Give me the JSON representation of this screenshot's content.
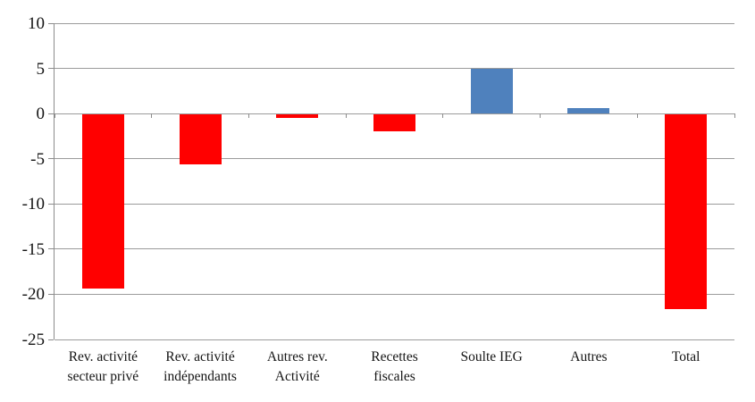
{
  "chart_data": {
    "type": "bar",
    "categories": [
      "Rev. activité\nsecteur privé",
      "Rev. activité\nindépendants",
      "Autres rev.\nActivité",
      "Recettes\nfiscales",
      "Soulte IEG",
      "Autres",
      "Total"
    ],
    "values": [
      -19.3,
      -5.6,
      -0.4,
      -1.9,
      5.0,
      0.6,
      -21.6
    ],
    "title": "",
    "xlabel": "",
    "ylabel": "",
    "ylim": [
      -25,
      10
    ],
    "y_ticks": [
      10,
      5,
      0,
      -5,
      -10,
      -15,
      -20,
      -25
    ],
    "grid": true,
    "legend_position": "none",
    "colors": {
      "positive": "#4F81BD",
      "negative": "#FF0000",
      "gridline": "#9B9B9B",
      "axis": "#8C8C8C",
      "text": "#141414",
      "background": "#FFFFFF"
    }
  }
}
